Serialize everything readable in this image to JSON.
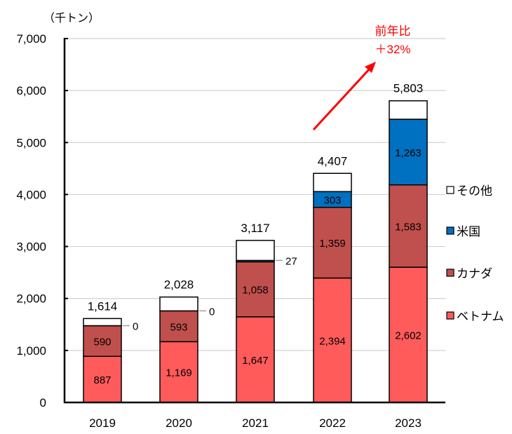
{
  "chart_data": {
    "type": "bar",
    "stacked": true,
    "unit_label": "（千トン）",
    "categories": [
      "2019",
      "2020",
      "2021",
      "2022",
      "2023"
    ],
    "series": [
      {
        "name": "ベトナム",
        "color": "#ff5b5b",
        "values": [
          887,
          1169,
          1647,
          2394,
          2602
        ],
        "labels": [
          "887",
          "1,169",
          "1,647",
          "2,394",
          "2,602"
        ]
      },
      {
        "name": "カナダ",
        "color": "#c0504d",
        "values": [
          590,
          593,
          1058,
          1359,
          1583
        ],
        "labels": [
          "590",
          "593",
          "1,058",
          "1,359",
          "1,583"
        ]
      },
      {
        "name": "米国",
        "color": "#0070c0",
        "values": [
          0,
          0,
          27,
          303,
          1263
        ],
        "labels": [
          "0",
          "0",
          "27",
          "303",
          "1,263"
        ]
      },
      {
        "name": "その他",
        "color": "#ffffff",
        "values": [
          137,
          266,
          385,
          351,
          355
        ]
      }
    ],
    "totals": [
      "1,614",
      "2,028",
      "3,117",
      "4,407",
      "5,803"
    ],
    "total_values": [
      1614,
      2028,
      3117,
      4407,
      5803
    ],
    "ylim": [
      0,
      7000
    ],
    "yticks": [
      0,
      1000,
      2000,
      3000,
      4000,
      5000,
      6000,
      7000
    ],
    "ytick_labels": [
      "0",
      "1,000",
      "2,000",
      "3,000",
      "4,000",
      "5,000",
      "6,000",
      "7,000"
    ],
    "grid": true,
    "legend_position": "right",
    "legend": [
      "その他",
      "米国",
      "カナダ",
      "ベトナム"
    ],
    "annotation": {
      "line1": "前年比",
      "line2": "＋32%",
      "color": "#ff0000"
    }
  }
}
